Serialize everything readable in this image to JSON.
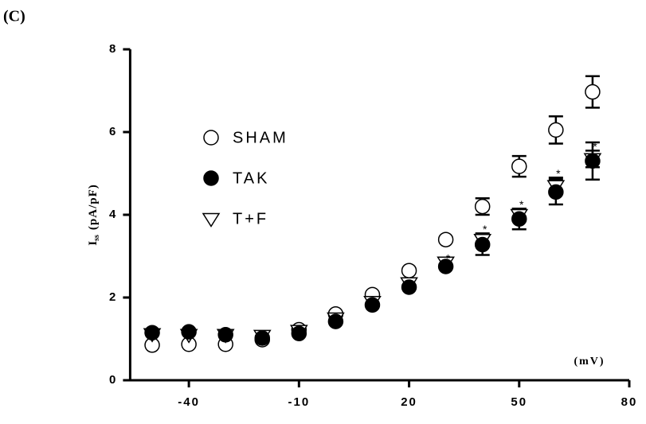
{
  "chart_data": {
    "type": "scatter",
    "panel_label": "(C)",
    "ylabel": {
      "main": "I",
      "sub": "ss",
      "unit": "(pA/pF)"
    },
    "xlabel": "(mV)",
    "x": [
      -50,
      -40,
      -30,
      -20,
      -10,
      0,
      10,
      20,
      30,
      40,
      50,
      60,
      70
    ],
    "series": [
      {
        "name": "SHAM",
        "marker": "circle-open",
        "color": "#000000",
        "values": [
          0.85,
          0.87,
          0.87,
          0.98,
          1.22,
          1.6,
          2.07,
          2.65,
          3.4,
          4.2,
          5.17,
          6.05,
          6.97
        ],
        "errors": [
          null,
          null,
          null,
          null,
          null,
          null,
          null,
          null,
          null,
          0.2,
          0.25,
          0.33,
          0.38
        ]
      },
      {
        "name": "TAK",
        "marker": "circle-filled",
        "color": "#000000",
        "values": [
          1.15,
          1.17,
          1.1,
          1.02,
          1.13,
          1.42,
          1.82,
          2.25,
          2.75,
          3.28,
          3.9,
          4.55,
          5.3
        ],
        "errors": [
          null,
          null,
          null,
          null,
          null,
          null,
          null,
          null,
          null,
          0.25,
          0.25,
          0.3,
          0.45
        ]
      },
      {
        "name": "T+F",
        "marker": "triangle-down-open",
        "color": "#000000",
        "values": [
          1.12,
          1.1,
          1.1,
          1.08,
          1.2,
          1.5,
          1.9,
          2.35,
          2.85,
          3.4,
          4.0,
          4.7,
          5.35
        ],
        "errors": [
          null,
          null,
          null,
          null,
          null,
          null,
          null,
          null,
          null,
          0.15,
          0.15,
          0.2,
          0.2
        ]
      }
    ],
    "annotations": [
      {
        "text": "*",
        "x": 30,
        "series": 2
      },
      {
        "text": "*",
        "x": 40,
        "series": 2
      },
      {
        "text": "*",
        "x": 50,
        "series": 2
      },
      {
        "text": "*",
        "x": 60,
        "series": 2
      },
      {
        "text": "*",
        "x": 70,
        "series": 2
      }
    ],
    "xlim": [
      -56,
      80
    ],
    "xticks": [
      -40,
      -10,
      20,
      50,
      80
    ],
    "ylim": [
      0,
      8
    ],
    "yticks": [
      0,
      2,
      4,
      6,
      8
    ],
    "legend": "upper left"
  }
}
